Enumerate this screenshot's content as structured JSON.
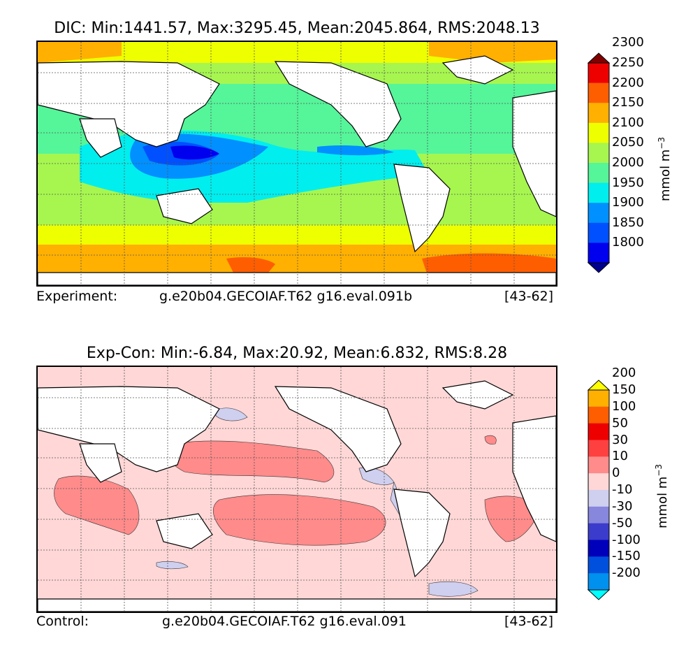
{
  "top_panel": {
    "title": "DIC: Min:1441.57, Max:3295.45, Mean:2045.864, RMS:2048.13",
    "footer_left": "Experiment:",
    "footer_mid": "g.e20b04.GECOIAF.T62 g16.eval.091b",
    "footer_right": "[43-62]",
    "colorbar": {
      "unit": "mmol m",
      "unit_sup": "−3",
      "levels": [
        "1800",
        "1850",
        "1900",
        "1950",
        "2000",
        "2050",
        "2100",
        "2150",
        "2200",
        "2250",
        "2300"
      ],
      "colors": [
        "#00008f",
        "#0000ef",
        "#0050ff",
        "#0090ff",
        "#00eeee",
        "#55f59a",
        "#a6f64f",
        "#eeff00",
        "#ffb000",
        "#ff5e00",
        "#ee0000",
        "#800000"
      ]
    }
  },
  "bottom_panel": {
    "title": "Exp-Con: Min:-6.84, Max:20.92, Mean:6.832, RMS:8.28",
    "footer_left": "Control:",
    "footer_mid": "g.e20b04.GECOIAF.T62 g16.eval.091",
    "footer_right": "[43-62]",
    "colorbar": {
      "unit": "mmol m",
      "unit_sup": "−3",
      "levels": [
        "-200",
        "-150",
        "-100",
        "-50",
        "-30",
        "-10",
        "0",
        "10",
        "30",
        "50",
        "100",
        "150",
        "200"
      ],
      "colors": [
        "#00ffff",
        "#0090ee",
        "#0050dd",
        "#0000bb",
        "#3c3ccc",
        "#8787dd",
        "#cfcfef",
        "#ffd7d7",
        "#ff8b8b",
        "#ff4040",
        "#ee0000",
        "#ff5e00",
        "#ffb000",
        "#ffff00"
      ]
    }
  }
}
